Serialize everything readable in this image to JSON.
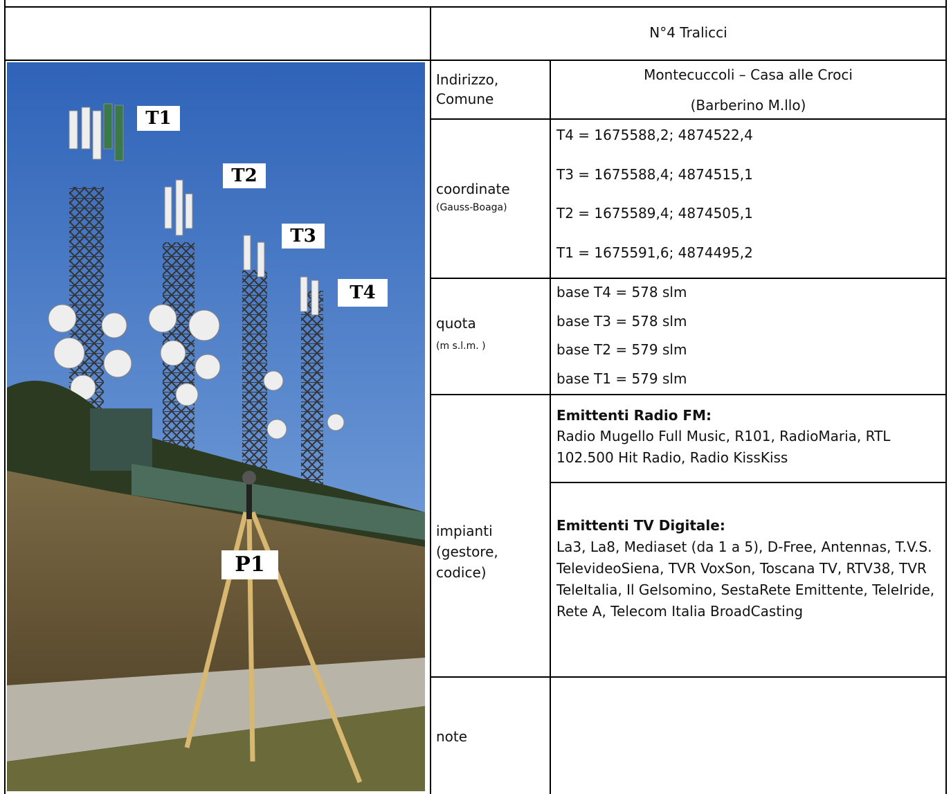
{
  "header": {
    "title": "N°4 Tralicci"
  },
  "photo": {
    "labels": [
      "T1",
      "T2",
      "T3",
      "T4",
      "P1"
    ]
  },
  "rows": [
    {
      "label": [
        "Indirizzo,",
        "Comune"
      ],
      "values": [
        "Montecuccoli – Casa alle Croci",
        "(Barberino M.llo)"
      ]
    },
    {
      "label": [
        "coordinate"
      ],
      "sublabel": "(Gauss-Boaga)",
      "values": [
        "T4 = 1675588,2; 4874522,4",
        "T3 = 1675588,4; 4874515,1",
        "T2 = 1675589,4; 4874505,1",
        "T1 = 1675591,6; 4874495,2"
      ]
    },
    {
      "label": [
        "quota"
      ],
      "sublabel": "(m s.l.m. )",
      "values": [
        "base T4 = 578 slm",
        "base T3 = 578 slm",
        "base T2 = 579 slm",
        "base T1 = 579 slm"
      ]
    },
    {
      "label": [
        "impianti",
        "(gestore,",
        "codice)"
      ],
      "groups": [
        {
          "heading": "Emittenti Radio FM:",
          "text": "Radio Mugello Full Music, R101, RadioMaria, RTL 102.500 Hit Radio, Radio KissKiss"
        },
        {
          "heading": "Emittenti TV Digitale:",
          "text": "La3, La8, Mediaset (da 1 a 5), D-Free, Antennas, T.V.S. TelevideoSiena, TVR VoxSon, Toscana TV, RTV38, TVR TeleItalia, Il Gelsomino, SestaRete Emittente, TeleIride, Rete A, Telecom Italia BroadCasting"
        }
      ]
    },
    {
      "label": [
        "note"
      ]
    }
  ]
}
